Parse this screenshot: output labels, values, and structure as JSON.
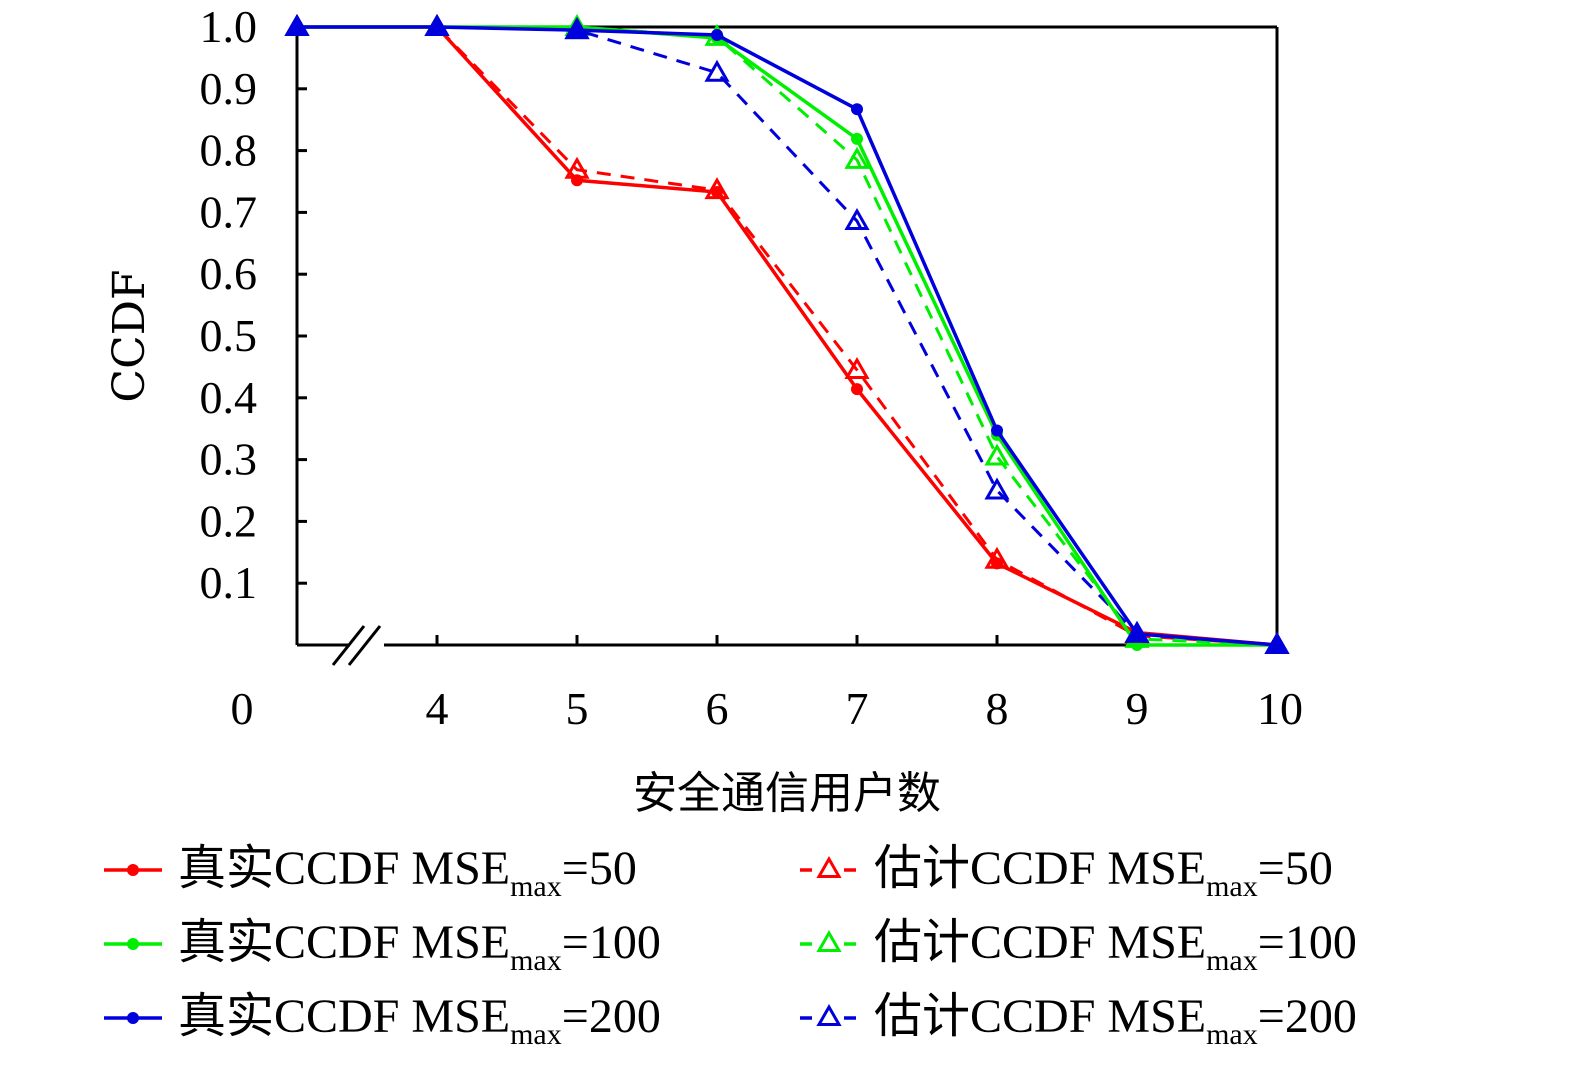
{
  "chart_data": {
    "type": "line",
    "title": "",
    "xlabel": "安全通信用户数",
    "ylabel": "CCDF",
    "x": [
      0,
      4,
      5,
      6,
      7,
      8,
      9,
      10
    ],
    "x_tick_labels": [
      "0",
      "4",
      "5",
      "6",
      "7",
      "8",
      "9",
      "10"
    ],
    "x_axis_break": "between 0 and 4",
    "y_ticks": [
      0.1,
      0.2,
      0.3,
      0.4,
      0.5,
      0.6,
      0.7,
      0.8,
      0.9,
      1.0
    ],
    "y_tick_labels": [
      "0.1",
      "0.2",
      "0.3",
      "0.4",
      "0.5",
      "0.6",
      "0.7",
      "0.8",
      "0.9",
      "1.0"
    ],
    "ylim": [
      0,
      1.0
    ],
    "grid": false,
    "legend_placement": "bottom",
    "series": [
      {
        "name": "真实CCDF MSE_max=50",
        "prefix": "真实CCDF MSE",
        "sub": "max",
        "suffix": "=50",
        "color": "#ff0000",
        "style": "solid",
        "marker": "dot",
        "values": [
          1.0,
          1.0,
          0.752,
          0.733,
          0.414,
          0.132,
          0.02,
          0.0
        ]
      },
      {
        "name": "真实CCDF MSE_max=100",
        "prefix": "真实CCDF MSE",
        "sub": "max",
        "suffix": "=100",
        "color": "#00ee00",
        "style": "solid",
        "marker": "dot",
        "values": [
          1.0,
          1.0,
          1.0,
          0.982,
          0.819,
          0.34,
          0.0,
          0.0
        ]
      },
      {
        "name": "真实CCDF MSE_max=200",
        "prefix": "真实CCDF MSE",
        "sub": "max",
        "suffix": "=200",
        "color": "#0000dd",
        "style": "solid",
        "marker": "dot",
        "values": [
          1.0,
          1.0,
          0.995,
          0.987,
          0.867,
          0.347,
          0.018,
          0.0
        ]
      },
      {
        "name": "估计CCDF MSE_max=50",
        "prefix": "估计CCDF MSE",
        "sub": "max",
        "suffix": "=50",
        "color": "#ff0000",
        "style": "dashed",
        "marker": "triangle",
        "values": [
          1.0,
          1.0,
          0.769,
          0.736,
          0.445,
          0.138,
          0.015,
          0.0
        ]
      },
      {
        "name": "估计CCDF MSE_max=100",
        "prefix": "估计CCDF MSE",
        "sub": "max",
        "suffix": "=100",
        "color": "#00ee00",
        "style": "dashed",
        "marker": "triangle",
        "values": [
          1.0,
          1.0,
          1.0,
          0.984,
          0.785,
          0.305,
          0.01,
          0.0
        ]
      },
      {
        "name": "估计CCDF MSE_max=200",
        "prefix": "估计CCDF MSE",
        "sub": "max",
        "suffix": "=200",
        "color": "#0000dd",
        "style": "dashed",
        "marker": "triangle",
        "values": [
          1.0,
          1.0,
          0.995,
          0.926,
          0.686,
          0.25,
          0.018,
          0.0
        ]
      }
    ]
  }
}
